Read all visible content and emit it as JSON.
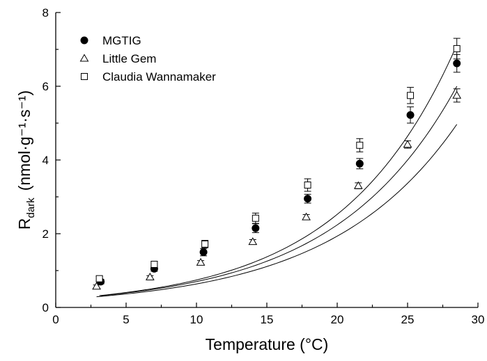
{
  "chart_data": {
    "type": "scatter",
    "xlabel": "Temperature (°C)",
    "ylabel_main": "R",
    "ylabel_sub": "dark",
    "ylabel_units": "(nmol·g⁻¹·s⁻¹)",
    "xlim": [
      0,
      30
    ],
    "ylim": [
      0,
      8
    ],
    "x_ticks": [
      "0",
      "5",
      "10",
      "15",
      "20",
      "25",
      "30"
    ],
    "y_ticks": [
      "0",
      "2",
      "4",
      "6",
      "8"
    ],
    "grid": false,
    "legend_position": "top-left",
    "series": [
      {
        "name": "MGTIG",
        "marker": "filled-circle",
        "x": [
          3.2,
          7.0,
          10.5,
          14.2,
          17.9,
          21.6,
          25.2,
          28.5
        ],
        "y": [
          0.7,
          1.05,
          1.5,
          2.15,
          2.95,
          3.9,
          5.22,
          6.62
        ],
        "err": [
          0.06,
          0.07,
          0.1,
          0.12,
          0.12,
          0.14,
          0.22,
          0.24
        ],
        "fit": [
          0.22,
          0.116
        ]
      },
      {
        "name": "Little Gem",
        "marker": "open-triangle",
        "x": [
          2.9,
          6.7,
          10.3,
          14.0,
          17.8,
          21.5,
          25.0,
          28.5
        ],
        "y": [
          0.57,
          0.82,
          1.22,
          1.78,
          2.45,
          3.3,
          4.42,
          5.75
        ],
        "err": [
          0.04,
          0.04,
          0.05,
          0.06,
          0.07,
          0.08,
          0.1,
          0.18
        ],
        "fit": [
          0.21,
          0.111
        ]
      },
      {
        "name": "Claudia Wannamaker",
        "marker": "open-square",
        "x": [
          3.1,
          7.0,
          10.6,
          14.2,
          17.9,
          21.6,
          25.2,
          28.5
        ],
        "y": [
          0.78,
          1.17,
          1.72,
          2.42,
          3.32,
          4.4,
          5.75,
          7.02
        ],
        "err": [
          0.06,
          0.08,
          0.1,
          0.14,
          0.17,
          0.18,
          0.22,
          0.28
        ],
        "fit": [
          0.22,
          0.122
        ]
      }
    ]
  }
}
